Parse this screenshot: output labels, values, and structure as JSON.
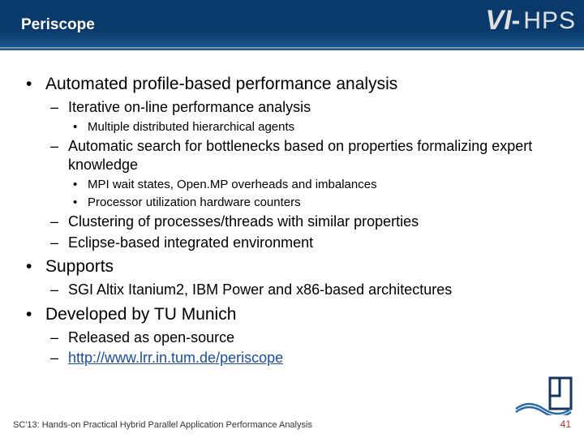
{
  "header": {
    "title": "Periscope",
    "logo_vi": "VI",
    "logo_dash": "-",
    "logo_hps": "HPS"
  },
  "content": {
    "l1": [
      {
        "text": "Automated profile-based performance analysis",
        "l2": [
          {
            "text": "Iterative on-line performance analysis",
            "l3": [
              {
                "text": "Multiple distributed hierarchical agents"
              }
            ]
          },
          {
            "text": "Automatic search for bottlenecks based on properties formalizing expert knowledge",
            "l3": [
              {
                "text": "MPI wait states, Open.MP overheads and imbalances"
              },
              {
                "text": "Processor utilization hardware counters"
              }
            ]
          },
          {
            "text": "Clustering of processes/threads with similar properties"
          },
          {
            "text": "Eclipse-based integrated environment"
          }
        ]
      },
      {
        "text": "Supports",
        "l2": [
          {
            "text": "SGI Altix Itanium2, IBM Power and x86-based architectures"
          }
        ]
      },
      {
        "text": "Developed by TU Munich",
        "l2": [
          {
            "text": "Released as open-source"
          },
          {
            "text": "http://www.lrr.in.tum.de/periscope",
            "link": true
          }
        ]
      }
    ]
  },
  "footer": {
    "text": "SC'13: Hands-on Practical Hybrid Parallel Application Performance Analysis",
    "page": "41"
  },
  "corner_logo": {
    "stroke": "#16365c",
    "wave": "#2a6aa8"
  }
}
